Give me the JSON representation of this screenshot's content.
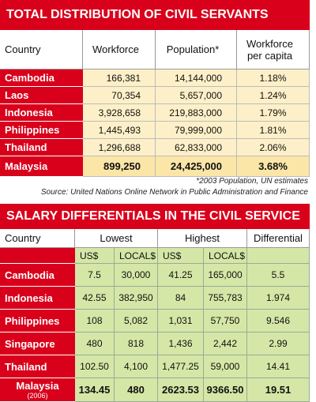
{
  "table1": {
    "title": "TOTAL DISTRIBUTION OF CIVIL SERVANTS",
    "columns": [
      "Country",
      "Workforce",
      "Population*",
      "Workforce per capita"
    ],
    "rows": [
      [
        "Cambodia",
        "166,381",
        "14,144,000",
        "1.18%"
      ],
      [
        "Laos",
        "70,354",
        "5,657,000",
        "1.24%"
      ],
      [
        "Indonesia",
        "3,928,658",
        "219,883,000",
        "1.79%"
      ],
      [
        "Philippines",
        "1,445,493",
        "79,999,000",
        "1.81%"
      ],
      [
        "Thailand",
        "1,296,688",
        "62,833,000",
        "2.06%"
      ],
      [
        "Malaysia",
        "899,250",
        "24,425,000",
        "3.68%"
      ]
    ],
    "notes": [
      "*2003 Population, UN estimates",
      "Source: United Nations Online Network in Public Administration and Finance"
    ]
  },
  "table2": {
    "title": "SALARY DIFFERENTIALS IN THE CIVIL SERVICE",
    "columns": [
      "Country",
      "Lowest",
      "Highest",
      "Differential"
    ],
    "subcolumns": [
      "US$",
      "LOCAL$",
      "US$",
      "LOCAL$"
    ],
    "rows": [
      [
        "Cambodia",
        "7.5",
        "30,000",
        "41.25",
        "165,000",
        "5.5"
      ],
      [
        "Indonesia",
        "42.55",
        "382,950",
        "84",
        "755,783",
        "1.974"
      ],
      [
        "Philippines",
        "108",
        "5,082",
        "1,031",
        "57,750",
        "9.546"
      ],
      [
        "Singapore",
        "480",
        "818",
        "1,436",
        "2,442",
        "2.99"
      ],
      [
        "Thailand",
        "102.50",
        "4,100",
        "1,477.25",
        "59,000",
        "14.41"
      ],
      [
        "Malaysia",
        "134.45",
        "480",
        "2623.53",
        "9366.50",
        "19.51"
      ]
    ],
    "row_note": "(2006)"
  }
}
